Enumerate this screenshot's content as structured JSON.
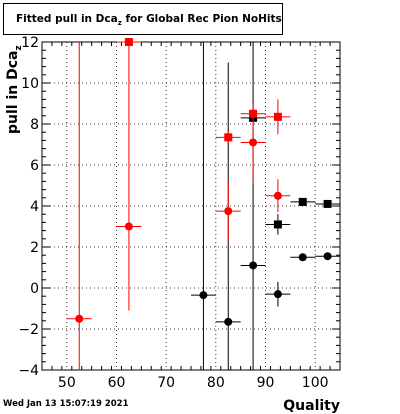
{
  "title": {
    "main": "Fitted pull in Dca",
    "subscript": "z",
    "rest": " for Global Rec Pion NoHits"
  },
  "timestamp": "Wed Jan 13 15:07:19 2021",
  "chart_data": {
    "type": "scatter",
    "xlabel": "Quality",
    "ylabel": "pull in Dca",
    "ylabel_subscript": "z",
    "xlim": [
      45,
      105
    ],
    "ylim": [
      -4,
      12
    ],
    "xticks": [
      50,
      60,
      70,
      80,
      90,
      100
    ],
    "yticks": [
      -4,
      -2,
      0,
      2,
      4,
      6,
      8,
      10,
      12
    ],
    "grid": true,
    "series": [
      {
        "color": "#000000",
        "marker": "circle",
        "points": [
          {
            "x": 77.5,
            "y": -0.35,
            "xerr": 2.5,
            "ylo": -4,
            "yhi": 12
          },
          {
            "x": 82.5,
            "y": -1.65,
            "xerr": 2.5,
            "ylo": -4,
            "yhi": 11
          },
          {
            "x": 87.5,
            "y": 1.1,
            "xerr": 2.5,
            "ylo": -4,
            "yhi": 12
          },
          {
            "x": 92.5,
            "y": -0.3,
            "xerr": 2.5,
            "ylo": -0.9,
            "yhi": 0.3
          },
          {
            "x": 97.5,
            "y": 1.5,
            "xerr": 2.5,
            "ylo": 1.5,
            "yhi": 1.5
          },
          {
            "x": 102.5,
            "y": 1.55,
            "xerr": 2.5,
            "ylo": 1.5,
            "yhi": 1.6
          }
        ]
      },
      {
        "color": "#000000",
        "marker": "square",
        "points": [
          {
            "x": 87.5,
            "y": 8.3,
            "xerr": 2.5,
            "ylo": 8.3,
            "yhi": 8.3
          },
          {
            "x": 92.5,
            "y": 3.1,
            "xerr": 2.5,
            "ylo": 2.6,
            "yhi": 3.6
          },
          {
            "x": 97.5,
            "y": 4.2,
            "xerr": 2.5,
            "ylo": 4.2,
            "yhi": 4.2
          },
          {
            "x": 102.5,
            "y": 4.1,
            "xerr": 2.5,
            "ylo": 4.1,
            "yhi": 4.1
          }
        ]
      },
      {
        "color": "#ff0000",
        "marker": "circle",
        "points": [
          {
            "x": 52.5,
            "y": -1.5,
            "xerr": 2.5,
            "ylo": -4,
            "yhi": 12
          },
          {
            "x": 62.5,
            "y": 3.0,
            "xerr": 2.5,
            "ylo": -1.1,
            "yhi": 12
          },
          {
            "x": 82.5,
            "y": 3.75,
            "xerr": 2.5,
            "ylo": 2.3,
            "yhi": 5.2
          },
          {
            "x": 87.5,
            "y": 7.1,
            "xerr": 2.5,
            "ylo": 5.1,
            "yhi": 9.0
          },
          {
            "x": 92.5,
            "y": 4.5,
            "xerr": 2.5,
            "ylo": 3.7,
            "yhi": 5.3
          }
        ]
      },
      {
        "color": "#ff0000",
        "marker": "square",
        "points": [
          {
            "x": 62.5,
            "y": 12.0,
            "xerr": 2.5,
            "ylo": 11.8,
            "yhi": 12
          },
          {
            "x": 82.5,
            "y": 7.35,
            "xerr": 2.5,
            "ylo": 7.0,
            "yhi": 7.7
          },
          {
            "x": 87.5,
            "y": 8.5,
            "xerr": 2.5,
            "ylo": 8.0,
            "yhi": 9.0
          },
          {
            "x": 92.5,
            "y": 8.35,
            "xerr": 2.5,
            "ylo": 7.5,
            "yhi": 9.2
          }
        ]
      }
    ]
  }
}
